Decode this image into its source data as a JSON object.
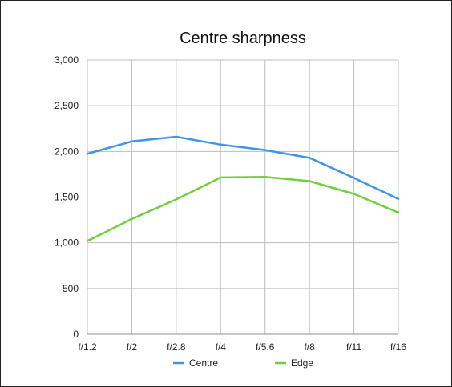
{
  "chart_data": {
    "type": "line",
    "title": "Centre sharpness",
    "xlabel": "",
    "ylabel": "",
    "categories": [
      "f/1.2",
      "f/2",
      "f/2.8",
      "f/4",
      "f/5.6",
      "f/8",
      "f/11",
      "f/16"
    ],
    "ylim": [
      0,
      3000
    ],
    "yticks": [
      0,
      500,
      1000,
      1500,
      2000,
      2500,
      3000
    ],
    "ytick_labels": [
      "0",
      "500",
      "1,000",
      "1,500",
      "2,000",
      "2,500",
      "3,000"
    ],
    "grid": true,
    "legend_position": "bottom",
    "series": [
      {
        "name": "Centre",
        "color": "#3f95e6",
        "values": [
          1975,
          2110,
          2160,
          2075,
          2015,
          1930,
          1710,
          1480
        ]
      },
      {
        "name": "Edge",
        "color": "#6fcf3c",
        "values": [
          1020,
          1260,
          1475,
          1715,
          1720,
          1675,
          1535,
          1330
        ]
      }
    ]
  }
}
